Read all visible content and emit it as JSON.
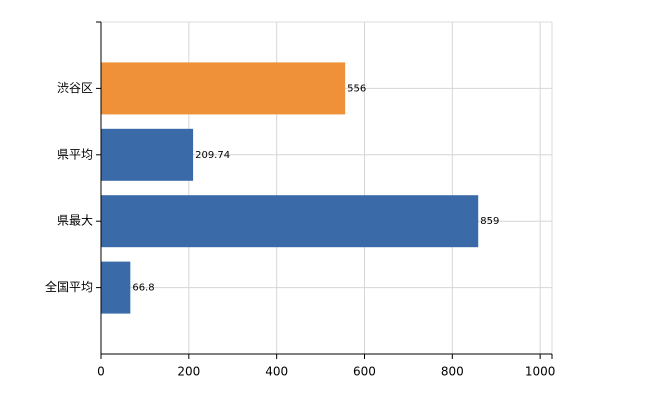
{
  "chart_data": {
    "type": "hbar",
    "categories": [
      "渋谷区",
      "県平均",
      "県最大",
      "全国平均"
    ],
    "values": [
      556,
      209.74,
      859,
      66.8
    ],
    "colors": [
      "#ee9138",
      "#3b6aa8",
      "#3b6aa8",
      "#3b6aa8"
    ],
    "xlim": [
      0,
      1027
    ],
    "xticks": [
      0,
      200,
      400,
      600,
      800,
      1000
    ],
    "grid": true
  }
}
